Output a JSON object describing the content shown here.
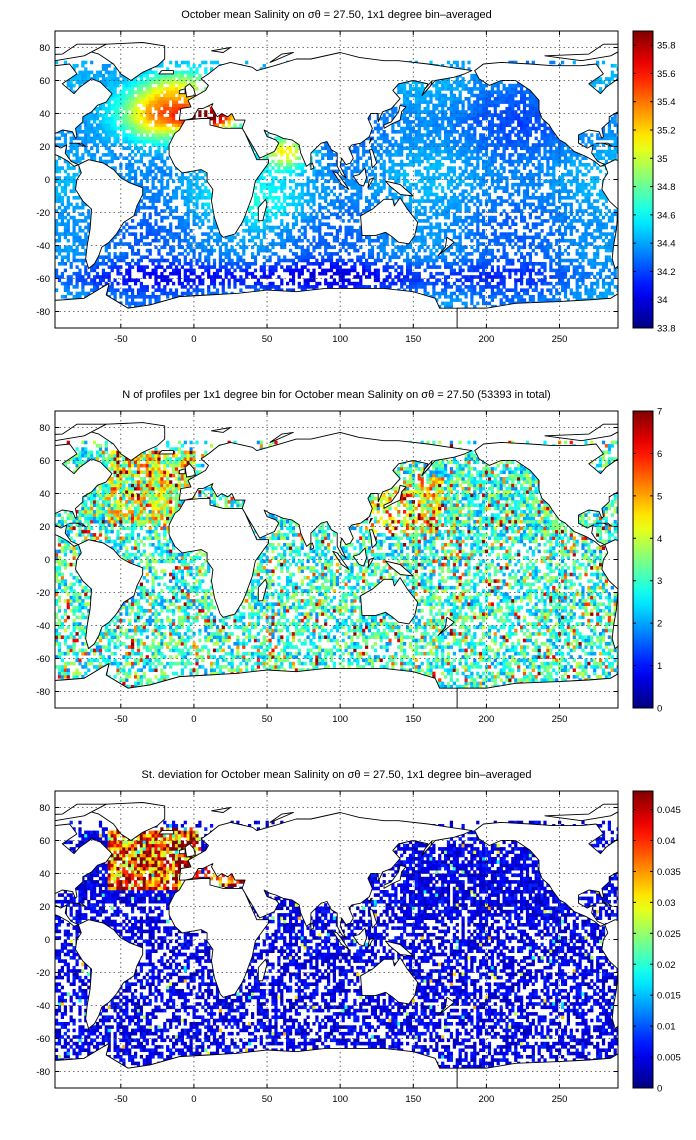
{
  "chart_data": [
    {
      "type": "heatmap",
      "title": "October mean Salinity on σθ = 27.50, 1x1 degree bin–averaged",
      "xlim": [
        -95,
        290
      ],
      "ylim": [
        -90,
        90
      ],
      "xticks": [
        -50,
        0,
        50,
        100,
        150,
        200,
        250
      ],
      "yticks": [
        -80,
        -60,
        -40,
        -20,
        0,
        20,
        40,
        60,
        80
      ],
      "grid": true,
      "colorbar": {
        "min": 33.8,
        "max": 35.9,
        "ticks": [
          33.8,
          34,
          34.2,
          34.4,
          34.6,
          34.8,
          35,
          35.2,
          35.4,
          35.6,
          35.8
        ]
      },
      "colormap": "jet",
      "field": "salinity"
    },
    {
      "type": "heatmap",
      "title": "N of profiles per 1x1 degree bin for October mean Salinity on σθ = 27.50 (53393 in total)",
      "xlim": [
        -95,
        290
      ],
      "ylim": [
        -90,
        90
      ],
      "xticks": [
        -50,
        0,
        50,
        100,
        150,
        200,
        250
      ],
      "yticks": [
        -80,
        -60,
        -40,
        -20,
        0,
        20,
        40,
        60,
        80
      ],
      "grid": true,
      "colorbar": {
        "min": 0,
        "max": 7,
        "ticks": [
          0,
          1,
          2,
          3,
          4,
          5,
          6,
          7
        ]
      },
      "colormap": "jet",
      "field": "count"
    },
    {
      "type": "heatmap",
      "title": "St. deviation for October mean Salinity on σθ = 27.50, 1x1 degree bin–averaged",
      "xlim": [
        -95,
        290
      ],
      "ylim": [
        -90,
        90
      ],
      "xticks": [
        -50,
        0,
        50,
        100,
        150,
        200,
        250
      ],
      "yticks": [
        -80,
        -60,
        -40,
        -20,
        0,
        20,
        40,
        60,
        80
      ],
      "grid": true,
      "colorbar": {
        "min": 0,
        "max": 0.048,
        "ticks": [
          0,
          0.005,
          0.01,
          0.015,
          0.02,
          0.025,
          0.03,
          0.035,
          0.04,
          0.045
        ]
      },
      "colormap": "jet",
      "field": "std"
    }
  ]
}
